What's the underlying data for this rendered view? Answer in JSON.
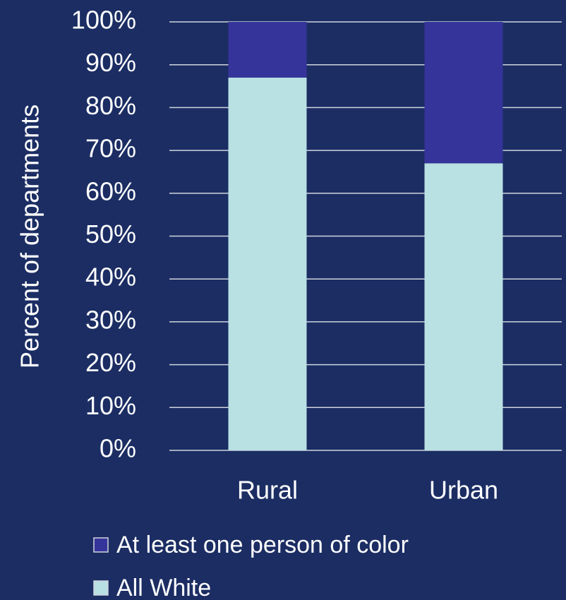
{
  "chart_data": {
    "type": "stacked_bar",
    "ylabel": "Percent of departments",
    "categories": [
      "Rural",
      "Urban"
    ],
    "series": [
      {
        "name": "All White",
        "color": "#b9e0e3",
        "values": [
          87,
          67
        ]
      },
      {
        "name": "At least one person of color",
        "color": "#35349a",
        "values": [
          13,
          33
        ]
      }
    ],
    "ylim": [
      0,
      100
    ],
    "yticks": [
      {
        "value": 0,
        "label": "0%"
      },
      {
        "value": 10,
        "label": "10%"
      },
      {
        "value": 20,
        "label": "20%"
      },
      {
        "value": 30,
        "label": "30%"
      },
      {
        "value": 40,
        "label": "40%"
      },
      {
        "value": 50,
        "label": "50%"
      },
      {
        "value": 60,
        "label": "60%"
      },
      {
        "value": 70,
        "label": "70%"
      },
      {
        "value": 80,
        "label": "80%"
      },
      {
        "value": 90,
        "label": "90%"
      },
      {
        "value": 100,
        "label": "100%"
      }
    ],
    "grid": true,
    "legend": "bottom"
  }
}
